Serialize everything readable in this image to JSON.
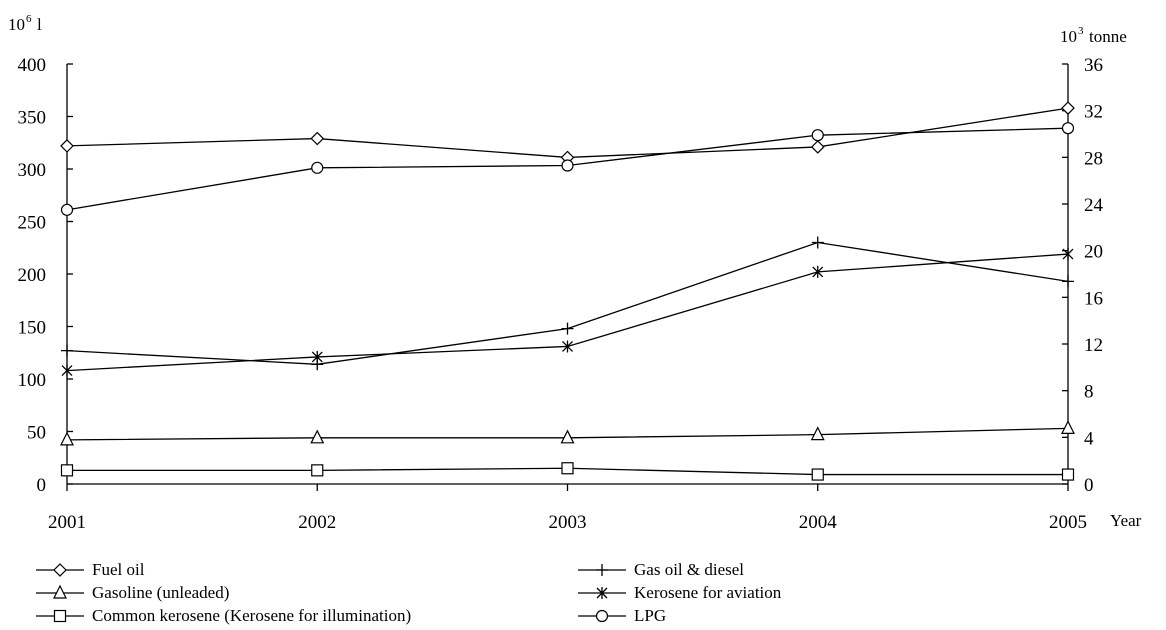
{
  "chart_data": {
    "type": "line",
    "title": "",
    "xlabel": "Year",
    "ylabel_left": {
      "base": "10",
      "exp": "6",
      "unit": "l"
    },
    "ylabel_right": {
      "base": "10",
      "exp": "3",
      "unit": "tonne"
    },
    "x": [
      "2001",
      "2002",
      "2003",
      "2004",
      "2005"
    ],
    "y_left_range": [
      0,
      400
    ],
    "y_left_ticks": [
      "0",
      "50",
      "100",
      "150",
      "200",
      "250",
      "300",
      "350",
      "400"
    ],
    "y_right_range": [
      0,
      36
    ],
    "y_right_ticks": [
      "0",
      "4",
      "8",
      "12",
      "16",
      "20",
      "24",
      "28",
      "32",
      "36"
    ],
    "grid": false,
    "legend_position": "bottom",
    "series": [
      {
        "name": "Fuel oil",
        "marker": "diamond",
        "axis": "left",
        "values": [
          322,
          329,
          311,
          321,
          358
        ]
      },
      {
        "name": "Gas oil & diesel",
        "marker": "plus",
        "axis": "left",
        "values": [
          127,
          114,
          148,
          230,
          193
        ]
      },
      {
        "name": "Gasoline (unleaded)",
        "marker": "triangle",
        "axis": "left",
        "values": [
          42,
          44,
          44,
          47,
          53
        ]
      },
      {
        "name": "Kerosene for aviation",
        "marker": "star",
        "axis": "left",
        "values": [
          108,
          121,
          131,
          202,
          219
        ]
      },
      {
        "name": "Common kerosene (Kerosene for illumination)",
        "marker": "square",
        "axis": "left",
        "values": [
          13,
          13,
          15,
          9,
          9
        ]
      },
      {
        "name": "LPG",
        "marker": "circle",
        "axis": "right",
        "values": [
          23.5,
          27.1,
          27.3,
          29.9,
          30.5
        ]
      }
    ]
  }
}
